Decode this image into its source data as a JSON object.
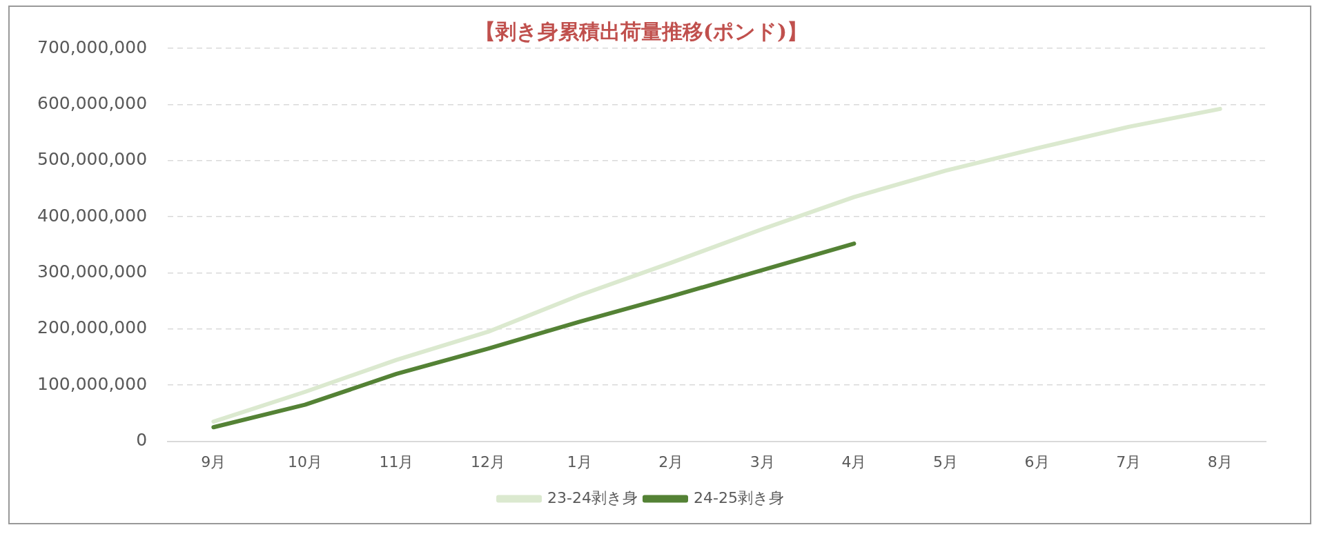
{
  "chart_data": {
    "type": "line",
    "title": "【剥き身累積出荷量推移(ポンド)】",
    "categories": [
      "9月",
      "10月",
      "11月",
      "12月",
      "1月",
      "2月",
      "3月",
      "4月",
      "5月",
      "6月",
      "7月",
      "8月"
    ],
    "series": [
      {
        "name": "23-24剥き身",
        "color": "#dbe9cf",
        "values": [
          35000000,
          88000000,
          145000000,
          195000000,
          260000000,
          318000000,
          378000000,
          435000000,
          482000000,
          522000000,
          560000000,
          592000000
        ]
      },
      {
        "name": "24-25剥き身",
        "color": "#548235",
        "values": [
          25000000,
          65000000,
          120000000,
          165000000,
          213000000,
          258000000,
          305000000,
          352000000,
          null,
          null,
          null,
          null
        ]
      }
    ],
    "ylim": [
      0,
      700000000
    ],
    "yticks": [
      0,
      {
        "value": 100000000,
        "label": "100,000,000"
      },
      {
        "value": 200000000,
        "label": "200,000,000"
      },
      {
        "value": 300000000,
        "label": "300,000,000"
      },
      {
        "value": 400000000,
        "label": "400,000,000"
      },
      {
        "value": 500000000,
        "label": "500,000,000"
      },
      {
        "value": 600000000,
        "label": "600,000,000"
      },
      {
        "value": 700000000,
        "label": "700,000,000"
      }
    ],
    "grid": "y",
    "legend": "bottom",
    "marker": "none",
    "line_style": "solid"
  }
}
